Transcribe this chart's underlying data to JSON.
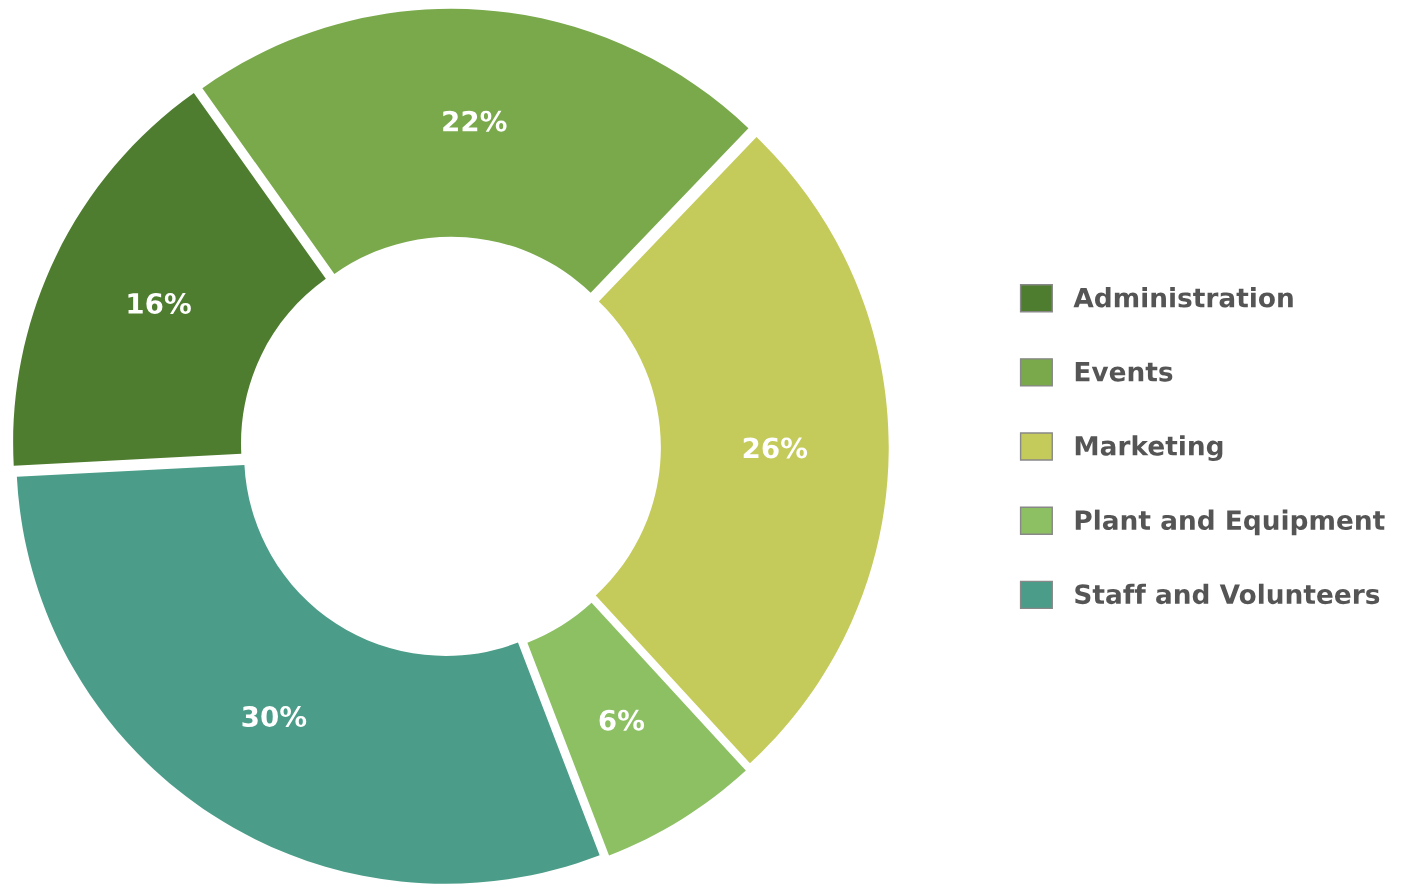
{
  "chart_data": {
    "type": "donut",
    "categories": [
      "Administration",
      "Events",
      "Marketing",
      "Plant and Equipment",
      "Staff and Volunteers"
    ],
    "values": [
      16,
      22,
      26,
      6,
      30
    ],
    "colors": [
      "#4f7d2f",
      "#79a94b",
      "#c4cb5b",
      "#8cc063",
      "#4b9d89"
    ],
    "value_labels": [
      "16%",
      "22%",
      "26%",
      "6%",
      "30%"
    ],
    "legend": "right"
  }
}
